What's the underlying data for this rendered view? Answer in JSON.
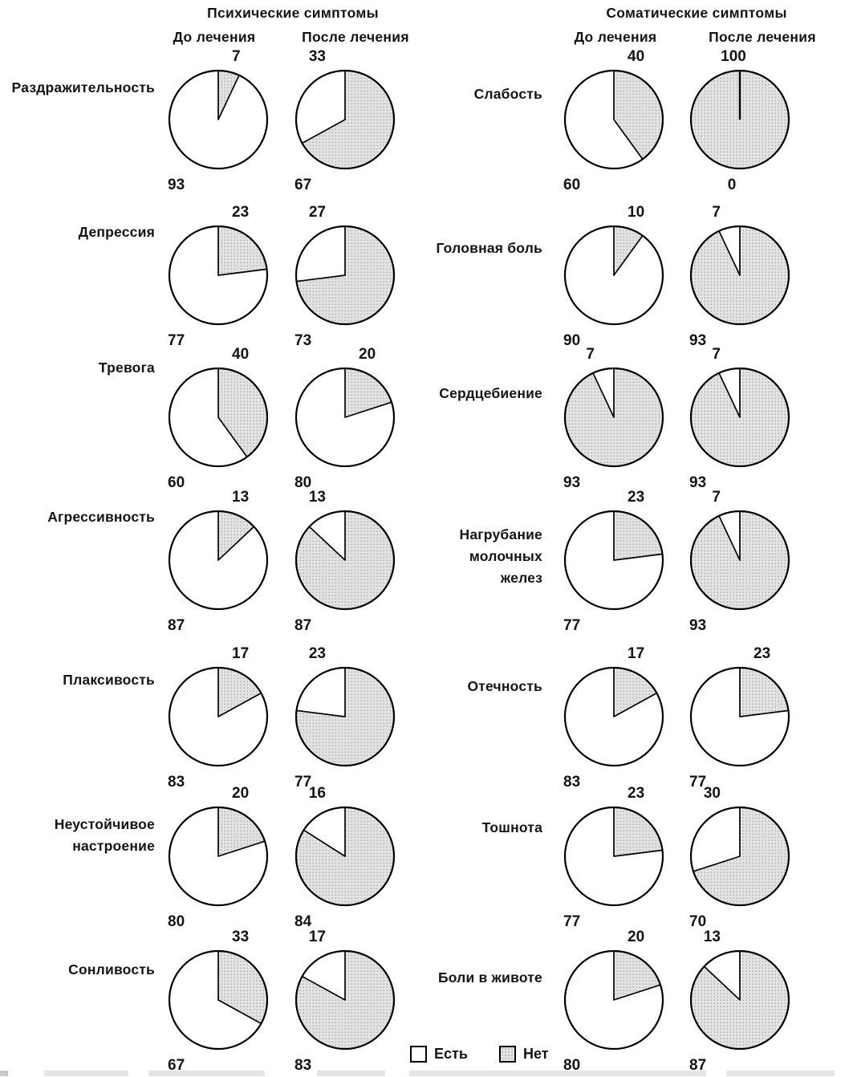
{
  "chart_data": {
    "type": "pie",
    "unit": "percent of patients",
    "description": "Grid of 28 pie charts: 7 symptoms x 2 symptom groups, each shown before and after treatment. Dotted (shaded) slice drawn clockwise from 12 o'clock spans shaded_pct; remaining slice is white. top_value labels the slice whose boundary meets 12 o'clock, bottom_value labels the other slice.",
    "legend": {
      "position": "bottom-center",
      "items": [
        {
          "label": "Есть",
          "fill": "white"
        },
        {
          "label": "Нет",
          "fill": "halftone-gray"
        }
      ]
    },
    "sections": [
      {
        "title": "Психические симптомы",
        "col_before": "До лечения",
        "col_after": "После лечения",
        "rows": [
          {
            "symptom": "Раздражительность",
            "symptom_lines": [
              "Раздражительность"
            ],
            "before": {
              "top_value": 7,
              "bottom_value": 93,
              "shaded_pct": 7
            },
            "after": {
              "top_value": 33,
              "bottom_value": 67,
              "shaded_pct": 67
            }
          },
          {
            "symptom": "Депрессия",
            "symptom_lines": [
              "Депрессия"
            ],
            "before": {
              "top_value": 23,
              "bottom_value": 77,
              "shaded_pct": 23
            },
            "after": {
              "top_value": 27,
              "bottom_value": 73,
              "shaded_pct": 73
            }
          },
          {
            "symptom": "Тревога",
            "symptom_lines": [
              "Тревога"
            ],
            "before": {
              "top_value": 40,
              "bottom_value": 60,
              "shaded_pct": 40
            },
            "after": {
              "top_value": 20,
              "bottom_value": 80,
              "shaded_pct": 20
            }
          },
          {
            "symptom": "Агрессивность",
            "symptom_lines": [
              "Агрессивность"
            ],
            "before": {
              "top_value": 13,
              "bottom_value": 87,
              "shaded_pct": 13
            },
            "after": {
              "top_value": 13,
              "bottom_value": 87,
              "shaded_pct": 87
            }
          },
          {
            "symptom": "Плаксивость",
            "symptom_lines": [
              "Плаксивость"
            ],
            "before": {
              "top_value": 17,
              "bottom_value": 83,
              "shaded_pct": 17
            },
            "after": {
              "top_value": 23,
              "bottom_value": 77,
              "shaded_pct": 77
            }
          },
          {
            "symptom": "Неустойчивое настроение",
            "symptom_lines": [
              "Неустойчивое",
              "настроение"
            ],
            "before": {
              "top_value": 20,
              "bottom_value": 80,
              "shaded_pct": 20
            },
            "after": {
              "top_value": 16,
              "bottom_value": 84,
              "shaded_pct": 84
            }
          },
          {
            "symptom": "Сонливость",
            "symptom_lines": [
              "Сонливость"
            ],
            "before": {
              "top_value": 33,
              "bottom_value": 67,
              "shaded_pct": 33
            },
            "after": {
              "top_value": 17,
              "bottom_value": 83,
              "shaded_pct": 83
            }
          }
        ]
      },
      {
        "title": "Соматические симптомы",
        "col_before": "До лечения",
        "col_after": "После лечения",
        "rows": [
          {
            "symptom": "Слабость",
            "symptom_lines": [
              "Слабость"
            ],
            "before": {
              "top_value": 40,
              "bottom_value": 60,
              "shaded_pct": 40
            },
            "after": {
              "top_value": 100,
              "bottom_value": 0,
              "shaded_pct": 100
            }
          },
          {
            "symptom": "Головная боль",
            "symptom_lines": [
              "Головная боль"
            ],
            "before": {
              "top_value": 10,
              "bottom_value": 90,
              "shaded_pct": 10
            },
            "after": {
              "top_value": 7,
              "bottom_value": 93,
              "shaded_pct": 93
            }
          },
          {
            "symptom": "Сердцебиение",
            "symptom_lines": [
              "Сердцебиение"
            ],
            "before": {
              "top_value": 7,
              "bottom_value": 93,
              "shaded_pct": 93
            },
            "after": {
              "top_value": 7,
              "bottom_value": 93,
              "shaded_pct": 93
            }
          },
          {
            "symptom": "Нагрубание молочных желез",
            "symptom_lines": [
              "Нагрубание",
              "молочных",
              "желез"
            ],
            "before": {
              "top_value": 23,
              "bottom_value": 77,
              "shaded_pct": 23
            },
            "after": {
              "top_value": 7,
              "bottom_value": 93,
              "shaded_pct": 93
            }
          },
          {
            "symptom": "Отечность",
            "symptom_lines": [
              "Отечность"
            ],
            "before": {
              "top_value": 17,
              "bottom_value": 83,
              "shaded_pct": 17
            },
            "after": {
              "top_value": 23,
              "bottom_value": 77,
              "shaded_pct": 23
            }
          },
          {
            "symptom": "Тошнота",
            "symptom_lines": [
              "Тошнота"
            ],
            "before": {
              "top_value": 23,
              "bottom_value": 77,
              "shaded_pct": 23
            },
            "after": {
              "top_value": 30,
              "bottom_value": 70,
              "shaded_pct": 70
            }
          },
          {
            "symptom": "Боли в животе",
            "symptom_lines": [
              "Боли в животе"
            ],
            "before": {
              "top_value": 20,
              "bottom_value": 80,
              "shaded_pct": 20
            },
            "after": {
              "top_value": 13,
              "bottom_value": 87,
              "shaded_pct": 87
            }
          }
        ]
      }
    ]
  },
  "colors": {
    "background": "#ffffff",
    "stroke": "#000000",
    "text": "#141414",
    "shaded_base": "#e3e3e3",
    "shaded_dot": "#b3b3b3"
  }
}
